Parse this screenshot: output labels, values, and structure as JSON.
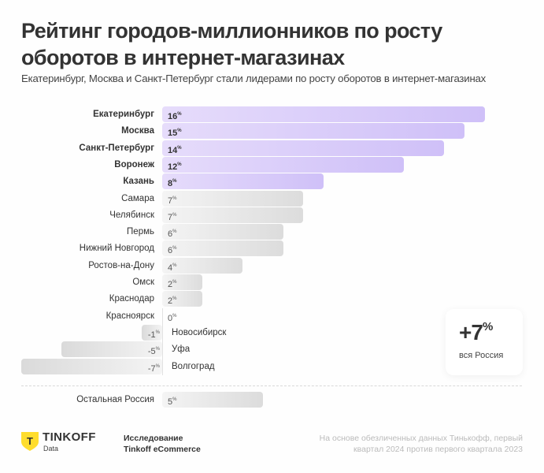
{
  "header": {
    "title": "Рейтинг городов-миллионников по росту оборотов в интернет-магазинах",
    "subtitle": "Екатеринбург, Москва и Санкт-Петербург стали лидерами по росту оборотов в интернет-магазинах"
  },
  "chart_data": {
    "type": "bar",
    "orientation": "horizontal",
    "title": "Рейтинг городов-миллионников по росту оборотов в интернет-магазинах",
    "unit": "%",
    "categories": [
      "Екатеринбург",
      "Москва",
      "Санкт-Петербург",
      "Воронеж",
      "Казань",
      "Самара",
      "Челябинск",
      "Пермь",
      "Нижний Новгород",
      "Ростов-на-Дону",
      "Омск",
      "Краснодар",
      "Красноярск",
      "Новосибирск",
      "Уфа",
      "Волгоград"
    ],
    "values": [
      16,
      15,
      14,
      12,
      8,
      7,
      7,
      6,
      6,
      4,
      2,
      2,
      0,
      -1,
      -5,
      -7
    ],
    "highlighted": [
      "Екатеринбург",
      "Москва",
      "Санкт-Петербург",
      "Воронеж",
      "Казань"
    ],
    "extra": {
      "category": "Остальная Россия",
      "value": 5
    },
    "colors": {
      "highlight": "#d6c8fa",
      "neutral": "#e4e4e4"
    },
    "xlim": [
      -7,
      16
    ]
  },
  "summary": {
    "value": "+7",
    "unit": "%",
    "label": "вся Россия"
  },
  "footer": {
    "logo_name": "TINKOFF",
    "logo_sub": "Data",
    "logo_glyph": "Т",
    "logo_color": "#ffdd2d",
    "research_line1": "Исследование",
    "research_line2": "Tinkoff eCommerce",
    "note_line1": "На основе обезличенных данных Тинькофф, первый",
    "note_line2": "квартал 2024 против первого квартала 2023"
  }
}
